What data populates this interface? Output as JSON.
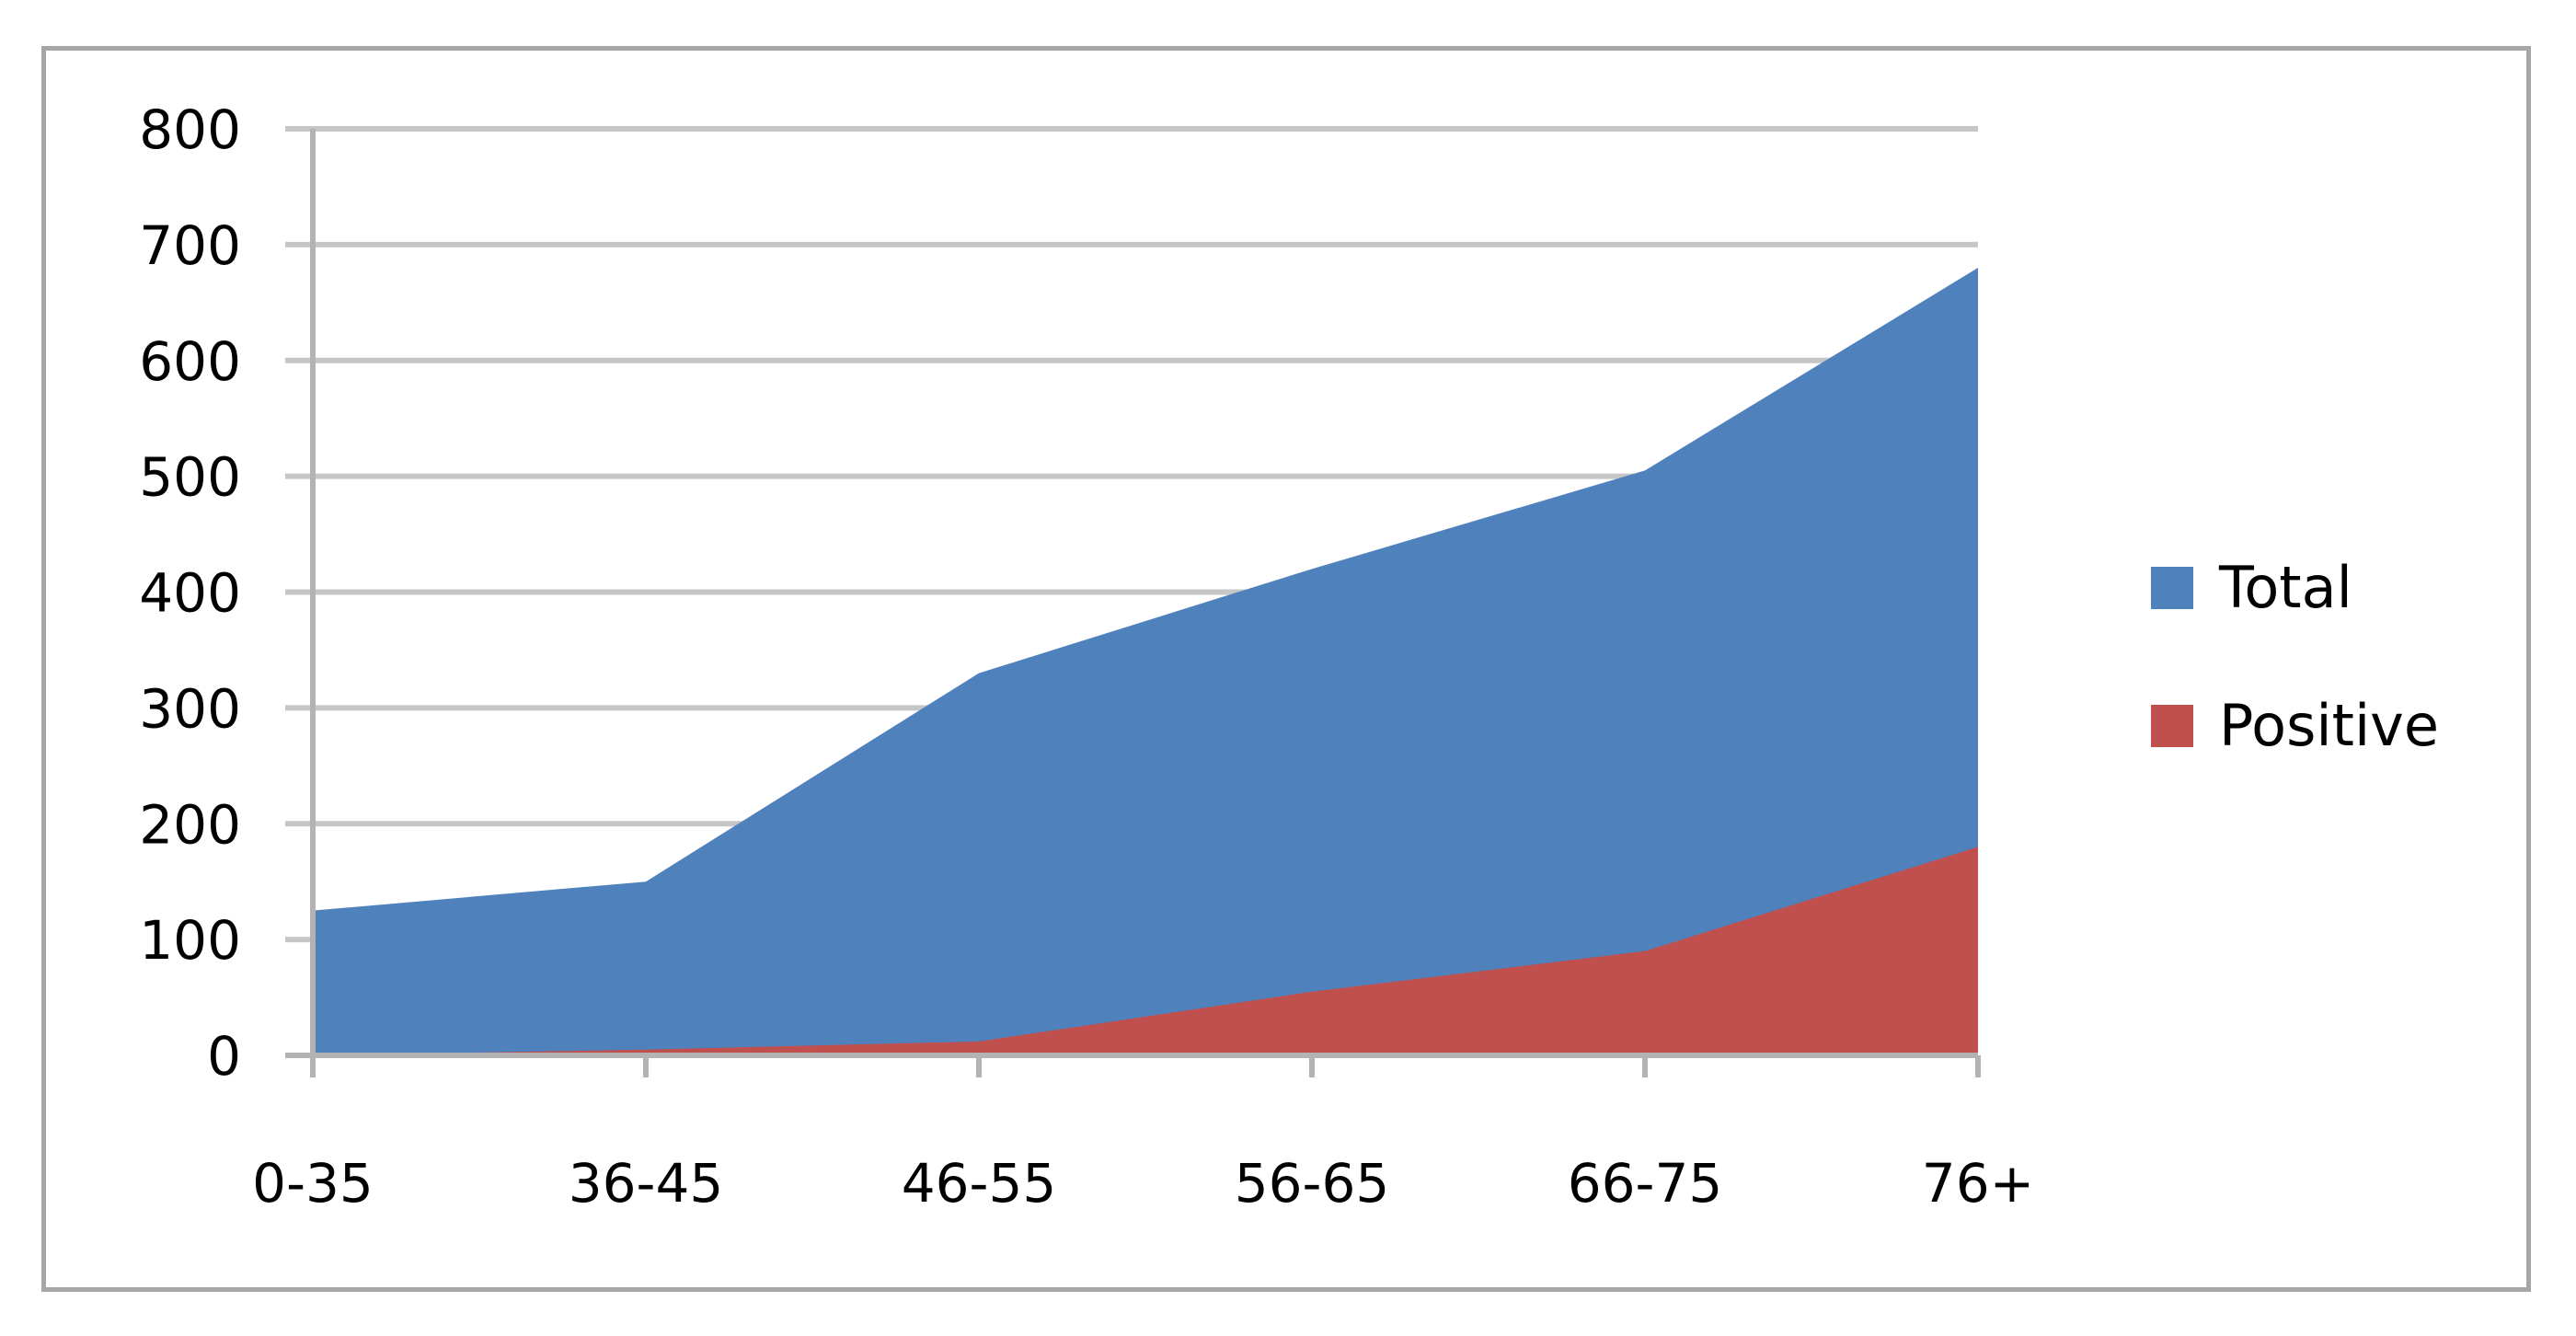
{
  "chart_data": {
    "type": "area",
    "categories": [
      "0-35",
      "36-45",
      "46-55",
      "56-65",
      "66-75",
      "76+"
    ],
    "series": [
      {
        "name": "Total",
        "values": [
          125,
          150,
          330,
          420,
          505,
          680
        ],
        "color": "#4f81bd"
      },
      {
        "name": "Positive",
        "values": [
          0,
          5,
          12,
          55,
          90,
          180
        ],
        "color": "#c0504d"
      }
    ],
    "ylim": [
      0,
      800
    ],
    "yticks": [
      0,
      100,
      200,
      300,
      400,
      500,
      600,
      700,
      800
    ],
    "grid": true,
    "legend_position": "right",
    "title": "",
    "xlabel": "",
    "ylabel": ""
  }
}
